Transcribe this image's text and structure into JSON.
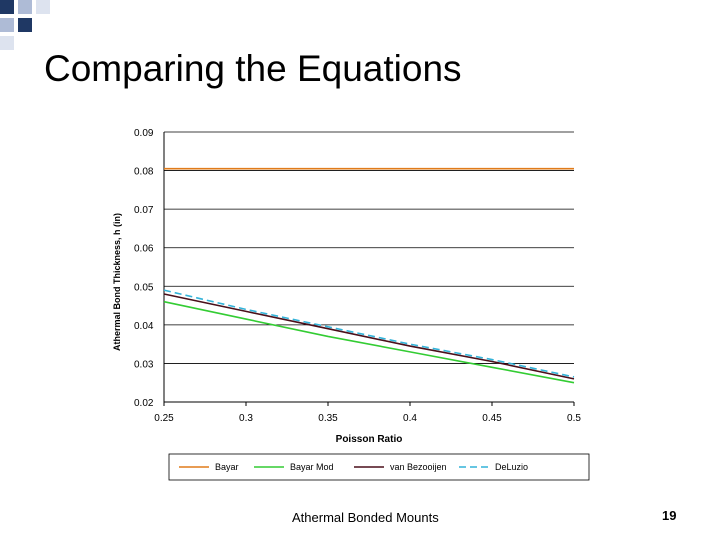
{
  "slide": {
    "title": "Comparing the Equations",
    "footer": "Athermal Bonded Mounts",
    "page_number": "19",
    "accent_colors": [
      "#1f3864",
      "#aebbd6",
      "#dde3ef"
    ]
  },
  "chart_data": {
    "type": "line",
    "title": "",
    "xlabel": "Poisson Ratio",
    "ylabel": "Athermal Bond Thickness, h (in)",
    "x": [
      0.25,
      0.3,
      0.35,
      0.4,
      0.45,
      0.5
    ],
    "xlim": [
      0.25,
      0.5
    ],
    "ylim": [
      0.02,
      0.09
    ],
    "x_ticks": [
      "0.25",
      "0.3",
      "0.35",
      "0.4",
      "0.45",
      "0.5"
    ],
    "y_ticks": [
      "0.09",
      "0.08",
      "0.07",
      "0.06",
      "0.05",
      "0.04",
      "0.03",
      "0.02"
    ],
    "grid": "horizontal",
    "legend_position": "bottom",
    "series": [
      {
        "name": "Bayar",
        "color": "#e07b1a",
        "dash": "solid",
        "values": [
          0.0805,
          0.0805,
          0.0805,
          0.0805,
          0.0805,
          0.0805
        ]
      },
      {
        "name": "Bayar Mod",
        "color": "#33cc33",
        "dash": "solid",
        "values": [
          0.046,
          0.0415,
          0.037,
          0.033,
          0.029,
          0.025
        ]
      },
      {
        "name": "van Bezooijen",
        "color": "#4a0f1a",
        "dash": "solid",
        "values": [
          0.048,
          0.0435,
          0.039,
          0.0345,
          0.0305,
          0.026
        ]
      },
      {
        "name": "DeLuzio",
        "color": "#33b3d9",
        "dash": "dashed",
        "values": [
          0.049,
          0.044,
          0.0395,
          0.035,
          0.031,
          0.0265
        ]
      }
    ]
  }
}
